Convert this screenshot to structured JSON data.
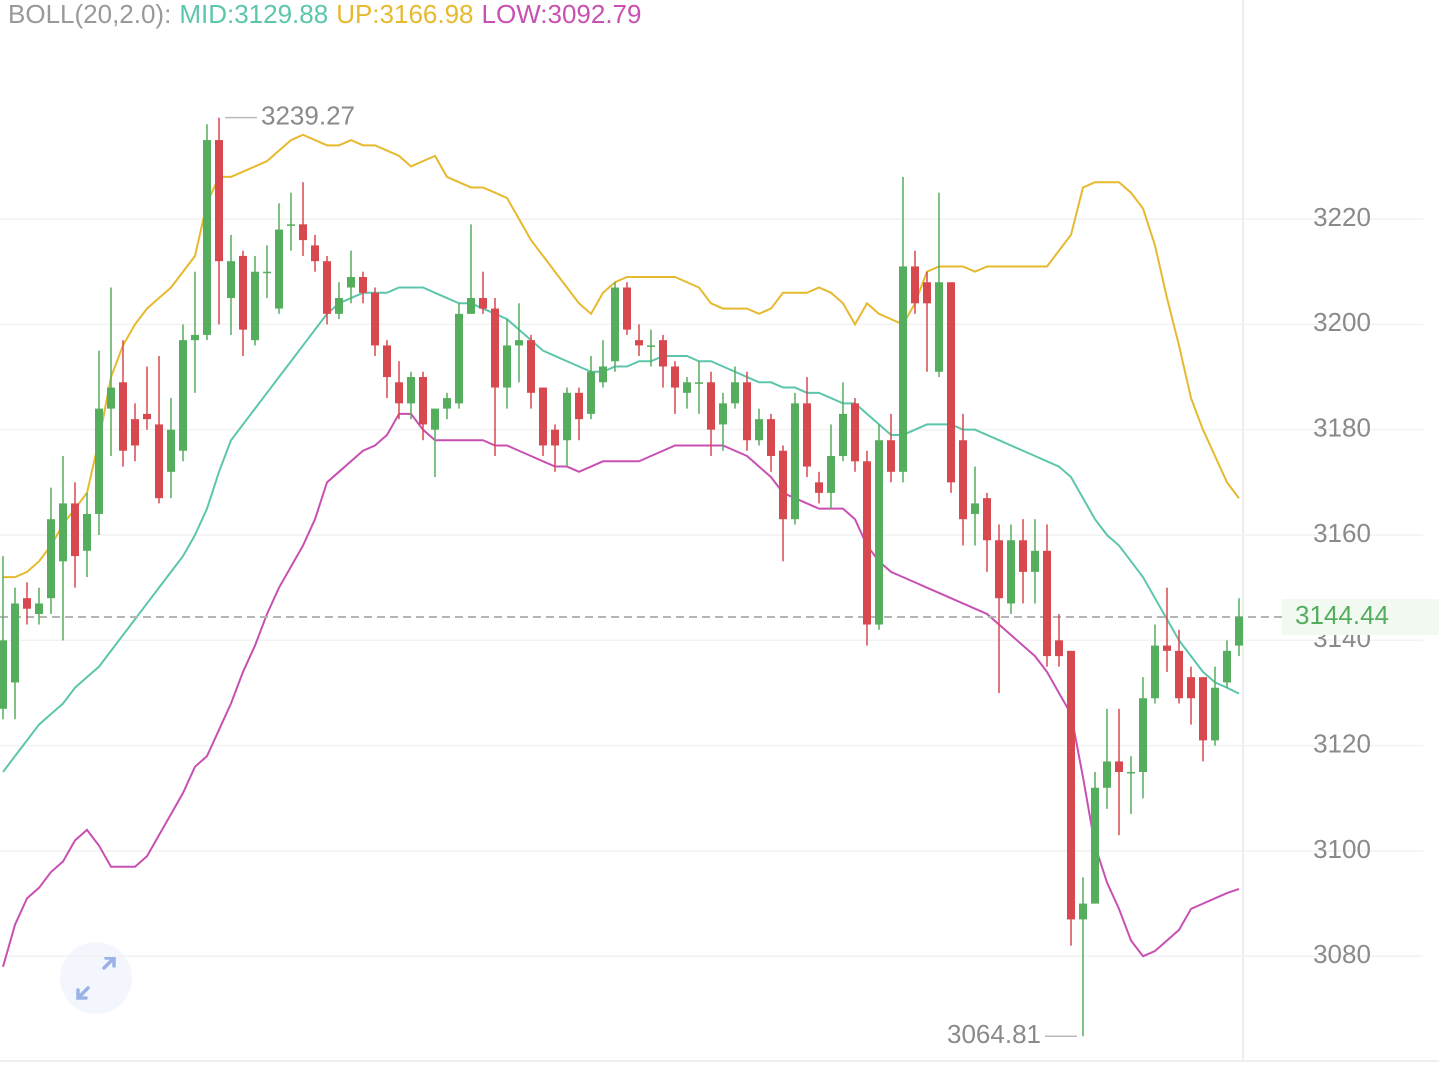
{
  "chart_data": {
    "type": "candlestick",
    "indicator_label": "BOLL(20,2.0):",
    "ylim": [
      3060.3,
      3261.6
    ],
    "yticks": [
      3080,
      3100,
      3120,
      3140,
      3160,
      3180,
      3200,
      3220
    ],
    "grid": true,
    "up_color": "#55ad5e",
    "down_color": "#d8484f",
    "last_price": 3144.44,
    "max_label": 3239.27,
    "min_label": 3064.81,
    "candles": {
      "open": [
        3127,
        3132,
        3148,
        3145,
        3148,
        3155,
        3166,
        3157,
        3164,
        3184,
        3189,
        3182,
        3183,
        3181,
        3172,
        3176,
        3197,
        3198,
        3235,
        3205,
        3213,
        3197,
        3210,
        3203,
        3219,
        3219,
        3215,
        3212,
        3202,
        3207,
        3209,
        3206,
        3196,
        3189,
        3185,
        3190,
        3180,
        3184,
        3185,
        3202,
        3205,
        3203,
        3188,
        3196,
        3197,
        3188,
        3180,
        3178,
        3187,
        3183,
        3189,
        3193,
        3207,
        3197,
        3196,
        3197,
        3192,
        3187,
        3189,
        3189,
        3181,
        3185,
        3189,
        3178,
        3182,
        3176,
        3163,
        3185,
        3170,
        3168,
        3175,
        3185,
        3174,
        3143,
        3178,
        3172,
        3211,
        3208,
        3191,
        3208,
        3178,
        3164,
        3167,
        3159,
        3147,
        3159,
        3153,
        3157,
        3140,
        3138,
        3087,
        3090,
        3112,
        3117,
        3115,
        3115,
        3129,
        3139,
        3138,
        3133,
        3133,
        3121,
        3132,
        3139
      ],
      "close": [
        3140,
        3147,
        3146,
        3147,
        3163,
        3166,
        3156,
        3164,
        3184,
        3188,
        3176,
        3177,
        3182,
        3167,
        3180,
        3197,
        3198,
        3235,
        3212,
        3212,
        3199,
        3210,
        3210,
        3218,
        3219,
        3216,
        3212,
        3202,
        3205,
        3209,
        3206,
        3196,
        3190,
        3185,
        3190,
        3181,
        3184,
        3186,
        3202,
        3205,
        3203,
        3188,
        3196,
        3197,
        3187,
        3177,
        3177,
        3187,
        3182,
        3191,
        3192,
        3207,
        3199,
        3196,
        3196,
        3192,
        3188,
        3189,
        3189,
        3180,
        3185,
        3189,
        3178,
        3182,
        3175,
        3163,
        3185,
        3173,
        3168,
        3175,
        3183,
        3174,
        3143,
        3178,
        3172,
        3211,
        3204,
        3204,
        3208,
        3170,
        3163,
        3166,
        3159,
        3148,
        3159,
        3153,
        3157,
        3137,
        3137,
        3087,
        3090,
        3112,
        3117,
        3115,
        3115,
        3129,
        3139,
        3138,
        3129,
        3129,
        3121,
        3131,
        3138,
        3144.44
      ],
      "high": [
        3156,
        3150,
        3151,
        3150,
        3169,
        3175,
        3170,
        3168,
        3195,
        3207,
        3197,
        3185,
        3192,
        3194,
        3186,
        3200,
        3210,
        3238,
        3239.27,
        3217,
        3214,
        3213,
        3215,
        3223,
        3225,
        3227,
        3217,
        3213,
        3208,
        3214,
        3210,
        3207,
        3197,
        3193,
        3191,
        3191,
        3184,
        3187,
        3204,
        3219,
        3210,
        3205,
        3201,
        3204,
        3198,
        3188,
        3181,
        3188,
        3188,
        3194,
        3197,
        3208,
        3208,
        3200,
        3199,
        3198,
        3193,
        3190,
        3193,
        3191,
        3187,
        3192,
        3191,
        3184,
        3183,
        3177,
        3187,
        3190,
        3172,
        3181,
        3189,
        3186,
        3176,
        3181,
        3183,
        3228,
        3214,
        3210,
        3225,
        3208,
        3183,
        3173,
        3168,
        3162,
        3162,
        3163,
        3163,
        3162,
        3145,
        3138,
        3095,
        3115,
        3127,
        3127,
        3118,
        3133,
        3143,
        3150,
        3142,
        3135,
        3133,
        3135,
        3140,
        3148
      ],
      "low": [
        3125,
        3125,
        3143,
        3143,
        3145,
        3140,
        3150,
        3152,
        3160,
        3175,
        3173,
        3174,
        3180,
        3166,
        3167,
        3174,
        3187,
        3197,
        3200,
        3198,
        3194,
        3196,
        3205,
        3202,
        3214,
        3213,
        3210,
        3200,
        3201,
        3204,
        3204,
        3194,
        3186,
        3182,
        3182,
        3178,
        3171,
        3182,
        3184,
        3202,
        3202,
        3175,
        3184,
        3189,
        3184,
        3175,
        3172,
        3173,
        3178,
        3182,
        3188,
        3191,
        3198,
        3194,
        3192,
        3188,
        3183,
        3184,
        3183,
        3175,
        3176,
        3184,
        3176,
        3177,
        3172,
        3155,
        3162,
        3171,
        3166,
        3165,
        3174,
        3172,
        3139,
        3142,
        3170,
        3170,
        3202,
        3191,
        3190,
        3168,
        3158,
        3158,
        3153,
        3130,
        3145,
        3147,
        3147,
        3135,
        3135,
        3082,
        3064.81,
        3090,
        3108,
        3103,
        3107,
        3110,
        3128,
        3134,
        3128,
        3124,
        3117,
        3120,
        3131,
        3137
      ]
    },
    "series": [
      {
        "name": "MID:3129.88",
        "color": "#5cc6ad",
        "values": [
          3115,
          3118,
          3121,
          3124,
          3126,
          3128,
          3131,
          3133,
          3135,
          3138,
          3141,
          3144,
          3147,
          3150,
          3153,
          3156,
          3160,
          3165,
          3172,
          3178,
          3181,
          3184,
          3187,
          3190,
          3193,
          3196,
          3199,
          3202,
          3204,
          3205,
          3206,
          3206,
          3206,
          3207,
          3207,
          3207,
          3206,
          3205,
          3204,
          3204,
          3203,
          3202,
          3201,
          3199,
          3197,
          3195,
          3194,
          3193,
          3192,
          3191,
          3191,
          3192,
          3192,
          3193,
          3193,
          3194,
          3194,
          3194,
          3193,
          3193,
          3192,
          3191,
          3190,
          3189,
          3189,
          3188,
          3188,
          3187,
          3187,
          3186,
          3185,
          3185,
          3183,
          3181,
          3179,
          3179,
          3180,
          3181,
          3181,
          3181,
          3180,
          3180,
          3179,
          3178,
          3177,
          3176,
          3175,
          3174,
          3173,
          3171,
          3167,
          3163,
          3160,
          3158,
          3155,
          3152,
          3148,
          3144,
          3140,
          3137,
          3134,
          3132,
          3131,
          3129.88
        ]
      },
      {
        "name": "UP:3166.98",
        "color": "#e6b92e",
        "values": [
          3152,
          3152,
          3153,
          3155,
          3158,
          3162,
          3165,
          3168,
          3178,
          3190,
          3196,
          3200,
          3203,
          3205,
          3207,
          3210,
          3213,
          3223,
          3228,
          3228,
          3229,
          3230,
          3231,
          3233,
          3235,
          3236,
          3235,
          3234,
          3234,
          3235,
          3234,
          3234,
          3233,
          3232,
          3230,
          3231,
          3232,
          3228,
          3227,
          3226,
          3226,
          3225,
          3224,
          3220,
          3216,
          3213,
          3210,
          3207,
          3204,
          3202,
          3206,
          3208,
          3209,
          3209,
          3209,
          3209,
          3209,
          3208,
          3207,
          3204,
          3203,
          3203,
          3203,
          3202,
          3203,
          3206,
          3206,
          3206,
          3207,
          3206,
          3204,
          3200,
          3204,
          3202,
          3201,
          3200,
          3204,
          3210,
          3211,
          3211,
          3211,
          3210,
          3211,
          3211,
          3211,
          3211,
          3211,
          3211,
          3214,
          3217,
          3226,
          3227,
          3227,
          3227,
          3225,
          3222,
          3215,
          3205,
          3196,
          3186,
          3180,
          3175,
          3170,
          3166.98
        ]
      },
      {
        "name": "LOW:3092.79",
        "color": "#c850b2",
        "values": [
          3078,
          3086,
          3091,
          3093,
          3096,
          3098,
          3102,
          3104,
          3101,
          3097,
          3097,
          3097,
          3099,
          3103,
          3107,
          3111,
          3116,
          3118,
          3123,
          3128,
          3134,
          3139,
          3145,
          3150,
          3154,
          3158,
          3163,
          3170,
          3172,
          3174,
          3176,
          3177,
          3179,
          3183,
          3183,
          3180,
          3178,
          3178,
          3178,
          3178,
          3178,
          3177,
          3177,
          3176,
          3175,
          3174,
          3173,
          3173,
          3172,
          3173,
          3174,
          3174,
          3174,
          3174,
          3175,
          3176,
          3177,
          3177,
          3177,
          3177,
          3177,
          3176,
          3175,
          3173,
          3171,
          3168,
          3167,
          3166,
          3165,
          3165,
          3165,
          3163,
          3158,
          3155,
          3153,
          3152,
          3151,
          3150,
          3149,
          3148,
          3147,
          3146,
          3145,
          3143,
          3141,
          3139,
          3137,
          3134,
          3130,
          3126,
          3114,
          3101,
          3094,
          3089,
          3083,
          3080,
          3081,
          3083,
          3085,
          3089,
          3090,
          3091,
          3092,
          3092.79
        ]
      }
    ]
  }
}
